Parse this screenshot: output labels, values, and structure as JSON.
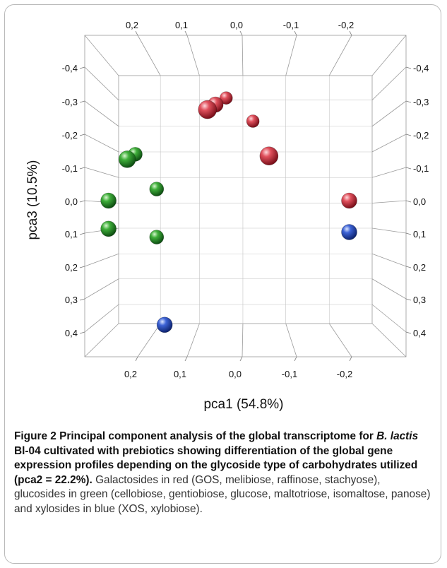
{
  "chart_data": {
    "type": "scatter",
    "projection": "3d",
    "xlabel": "pca1 (54.8%)",
    "ylabel": "pca3 (10.5%)",
    "x_ticks_bottom": [
      "0,2",
      "0,1",
      "0,0",
      "-0,1",
      "-0,2"
    ],
    "x_ticks_top": [
      "0,2",
      "0,1",
      "0,0",
      "-0,1",
      "-0,2"
    ],
    "y_ticks": [
      "-0,4",
      "-0,3",
      "-0,2",
      "-0,1",
      "0,0",
      "0,1",
      "0,2",
      "0,3",
      "0,4"
    ],
    "y_ticks_right": [
      "-0,4",
      "-0,3",
      "-0,2",
      "-0,1",
      "0,0",
      "0,1",
      "0,2",
      "0,3",
      "0,4"
    ],
    "grid": true,
    "series": [
      {
        "color": "#c8323f",
        "points": [
          {
            "x": 0.03,
            "y": -0.31
          },
          {
            "x": 0.05,
            "y": -0.29
          },
          {
            "x": 0.065,
            "y": -0.275
          },
          {
            "x": -0.02,
            "y": -0.24
          },
          {
            "x": -0.05,
            "y": -0.135
          },
          {
            "x": -0.2,
            "y": 0.0
          }
        ]
      },
      {
        "color": "#2e8b2e",
        "points": [
          {
            "x": 0.2,
            "y": -0.14
          },
          {
            "x": 0.215,
            "y": -0.125
          },
          {
            "x": 0.16,
            "y": -0.035
          },
          {
            "x": 0.25,
            "y": 0.0
          },
          {
            "x": 0.25,
            "y": 0.085
          },
          {
            "x": 0.16,
            "y": 0.11
          }
        ]
      },
      {
        "color": "#2a4fc4",
        "points": [
          {
            "x": -0.2,
            "y": 0.095
          },
          {
            "x": 0.145,
            "y": 0.375
          }
        ]
      }
    ]
  },
  "caption": {
    "title_bold_1": "Figure 2 Principal component analysis of the global transcriptome for ",
    "title_italic": "B. lactis",
    "title_bold_2": " Bl-04 cultivated with prebiotics showing differentiation of the global gene expression profiles depending on the glycoside type of carbohydrates utilized (pca2 = 22.2%).",
    "description": " Galactosides in red (GOS, melibiose, raffinose, stachyose), glucosides in green (cellobiose, gentiobiose, glucose, maltotriose, isomaltose, panose) and xylosides in blue (XOS, xylobiose)."
  }
}
